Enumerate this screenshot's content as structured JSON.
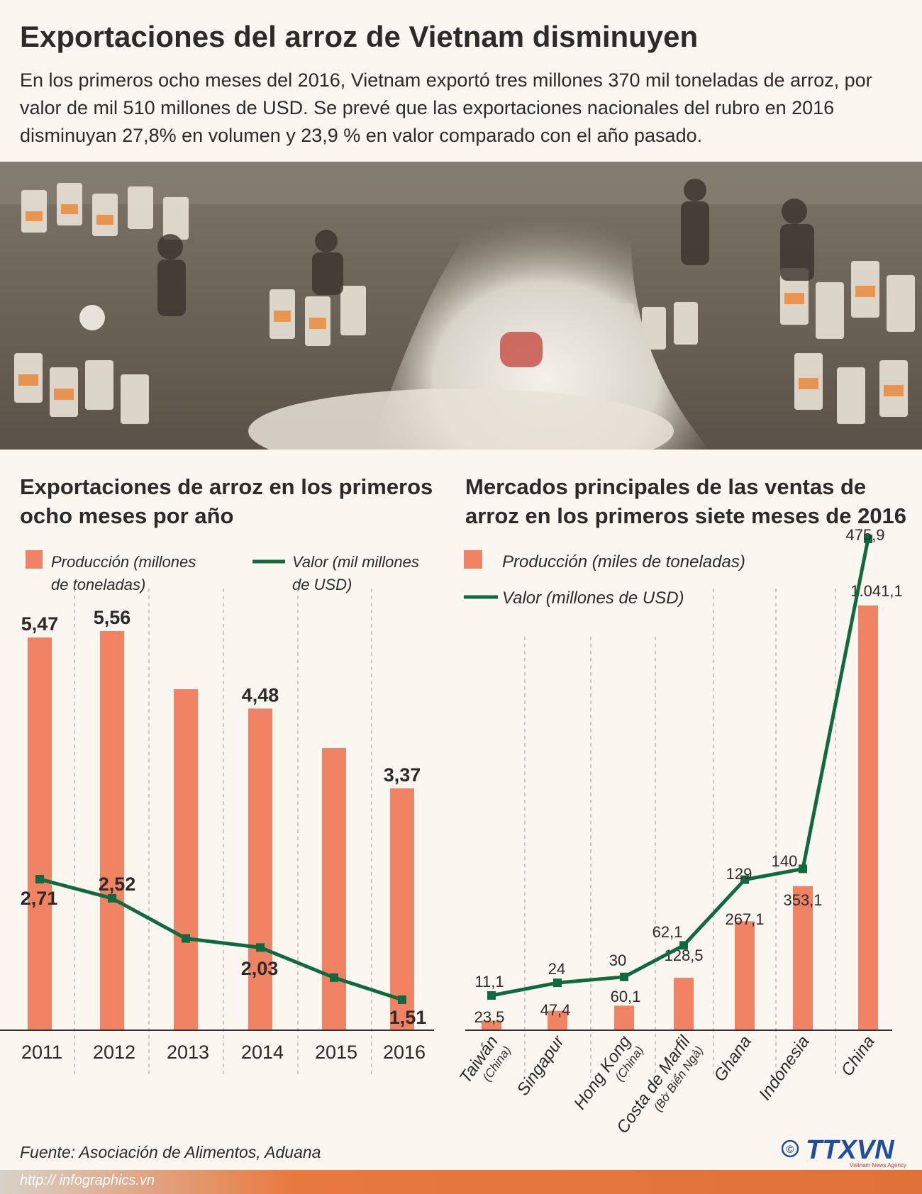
{
  "header": {
    "title": "Exportaciones del arroz de Vietnam disminuyen",
    "intro": "En los primeros ocho meses del 2016,  Vietnam exportó tres millones 370 mil toneladas de arroz, por valor de mil 510 millones de USD.  Se prevé que las exportaciones nacionales del rubro en 2016 disminuyan 27,8% en volumen y 23,9 % en valor comparado con el año pasado."
  },
  "colors": {
    "bar": "#ef8364",
    "line": "#0f6a40",
    "background": "#fbf6f0",
    "accent": "#e8793e"
  },
  "chart_data": [
    {
      "type": "bar",
      "title": "Exportaciones de arroz en los primeros ocho meses por año",
      "categories": [
        "2011",
        "2012",
        "2013",
        "2014",
        "2015",
        "2016"
      ],
      "series": [
        {
          "name": "Producción (millones de toneladas)",
          "type": "bar",
          "values": [
            5.47,
            5.56,
            4.75,
            4.48,
            3.93,
            3.37
          ],
          "labels": [
            "5,47",
            "5,56",
            "",
            "4,48",
            "",
            "3,37"
          ]
        },
        {
          "name": "Valor (mil millones de USD)",
          "type": "line",
          "values": [
            2.71,
            2.52,
            2.12,
            2.03,
            1.73,
            1.51
          ],
          "labels": [
            "2,71",
            "2,52",
            "",
            "2,03",
            "",
            "1,51"
          ]
        }
      ],
      "legend": "top"
    },
    {
      "type": "bar",
      "title": "Mercados principales de las ventas de arroz en los primeros siete meses de 2016",
      "categories": [
        "Taiwán (China)",
        "Singapur",
        "Hong Kong (China)",
        "Costa de Marfil (Bờ Biển Ngà)",
        "Ghana",
        "Indonesia",
        "China"
      ],
      "category_lines": [
        [
          "Taiwán",
          "(China)"
        ],
        [
          "Singapur",
          ""
        ],
        [
          "Hong Kong",
          "(China)"
        ],
        [
          "Costa de Marfil",
          "(Bờ Biển Ngà)"
        ],
        [
          "Ghana",
          ""
        ],
        [
          "Indonesia",
          ""
        ],
        [
          "China",
          ""
        ]
      ],
      "series": [
        {
          "name": "Producción (miles de toneladas)",
          "type": "bar",
          "values": [
            23.5,
            47.4,
            60.1,
            128.5,
            267.1,
            353.1,
            1041.1
          ],
          "labels": [
            "23,5",
            "47,4",
            "60,1",
            "128,5",
            "267,1",
            "353,1",
            "1.041,1"
          ]
        },
        {
          "name": "Valor (millones de USD)",
          "type": "line",
          "values": [
            11.1,
            24,
            30,
            62.1,
            129,
            140,
            475.9
          ],
          "labels": [
            "11,1",
            "24",
            "30",
            "62,1",
            "129",
            "140",
            "475,9"
          ]
        }
      ],
      "legend": "top"
    }
  ],
  "footer": {
    "source": "Fuente: Asociación de Alimentos, Aduana",
    "url": "http:// infographics.vn",
    "copyright": "©",
    "logo_text": "TTXVN",
    "logo_sub": "Vietnam News Agency"
  }
}
